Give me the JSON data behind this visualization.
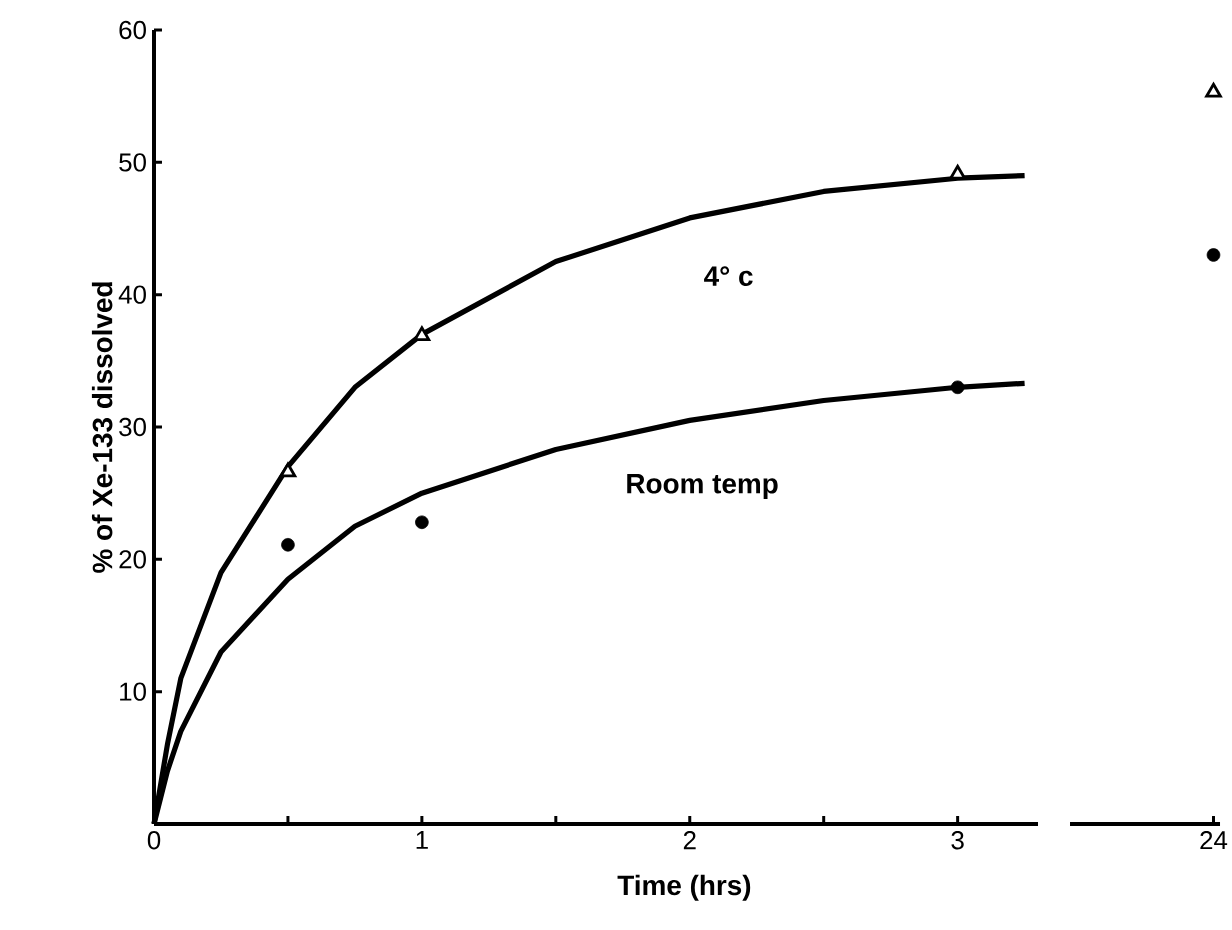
{
  "chart_data": [
    {
      "type": "line",
      "xlabel": "Time (hrs)",
      "ylabel": "% of Xe-133 dissolved",
      "xlim": [
        0,
        3.3
      ],
      "ylim": [
        0,
        60
      ],
      "xticks": [
        0,
        1,
        2,
        3,
        {
          "value": 0.5,
          "label": null
        },
        {
          "value": 1.5,
          "label": null
        },
        {
          "value": 2.5,
          "label": null
        }
      ],
      "yticks": [
        10,
        20,
        30,
        40,
        50,
        60
      ],
      "annotations": [
        "4° c",
        "Room temp"
      ],
      "series": [
        {
          "color": "#000000",
          "x": [
            0,
            0.05,
            0.1,
            0.25,
            0.5,
            0.75,
            1,
            1.5,
            2,
            2.5,
            3,
            3.25
          ],
          "values": [
            0,
            6,
            11,
            19,
            27,
            33,
            37,
            42.5,
            45.8,
            47.8,
            48.8,
            49
          ]
        },
        {
          "type": "scatter",
          "marker": "triangle",
          "color": "#000000",
          "x": [
            0.5,
            1,
            3
          ],
          "values": [
            26.6,
            36.9,
            49.1
          ]
        },
        {
          "color": "#000000",
          "x": [
            0,
            0.05,
            0.1,
            0.25,
            0.5,
            0.75,
            1,
            1.5,
            2,
            2.5,
            3,
            3.25
          ],
          "values": [
            0,
            4,
            7,
            13,
            18.5,
            22.5,
            25,
            28.3,
            30.5,
            32,
            33,
            33.3
          ]
        },
        {
          "type": "scatter",
          "marker": "circle",
          "color": "#000000",
          "x": [
            0.5,
            1,
            3
          ],
          "values": [
            21.1,
            22.8,
            33.0
          ]
        }
      ]
    },
    {
      "type": "scatter",
      "categories": [
        "24"
      ],
      "ylim": [
        0,
        60
      ],
      "tick_labels": "x",
      "series": [
        {
          "marker": "triangle",
          "color": "#000000",
          "values": [
            55.3
          ]
        },
        {
          "marker": "circle",
          "color": "#000000",
          "values": [
            43.0
          ]
        }
      ]
    }
  ]
}
